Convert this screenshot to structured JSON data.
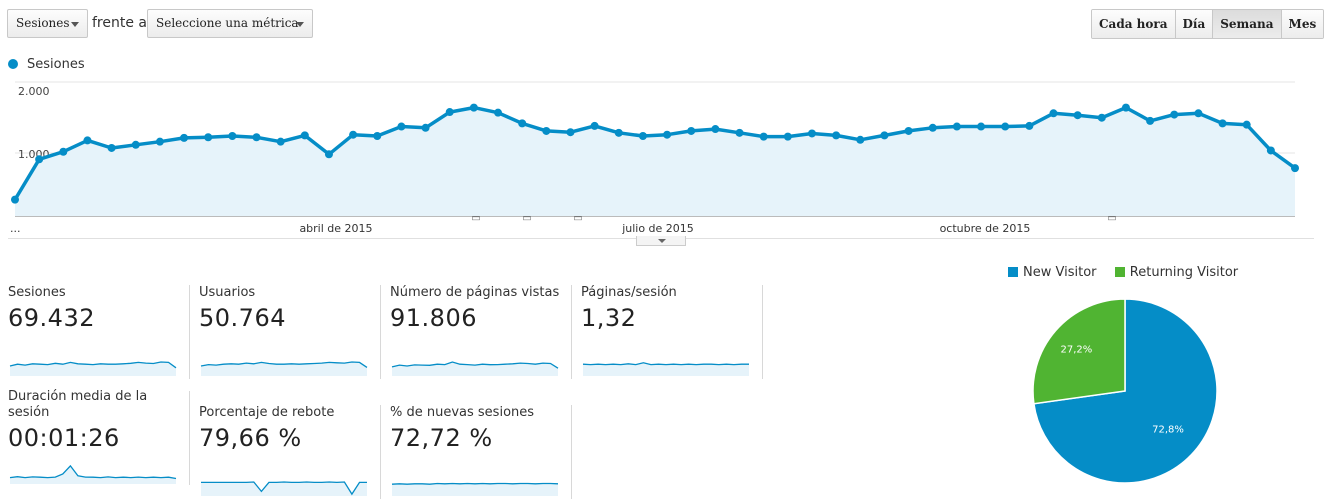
{
  "controls": {
    "primary_metric": "Sesiones",
    "versus": "frente a",
    "secondary_metric": "Seleccione una métrica",
    "granularity": [
      "Cada hora",
      "Día",
      "Semana",
      "Mes"
    ],
    "active_granularity": "Semana"
  },
  "chart_data": {
    "type": "area",
    "series_name": "Sesiones",
    "color": "#058dc7",
    "y_ticks": [
      "2.000",
      "1.000"
    ],
    "ylim": [
      0,
      2000
    ],
    "x_tick_labels": [
      "...",
      "abril de 2015",
      "julio de 2015",
      "octubre de 2015"
    ],
    "values": [
      260,
      900,
      1020,
      1200,
      1080,
      1130,
      1180,
      1240,
      1250,
      1270,
      1250,
      1180,
      1280,
      980,
      1290,
      1270,
      1420,
      1400,
      1650,
      1720,
      1640,
      1470,
      1350,
      1330,
      1430,
      1320,
      1270,
      1290,
      1350,
      1380,
      1320,
      1260,
      1260,
      1310,
      1280,
      1210,
      1280,
      1350,
      1400,
      1420,
      1420,
      1420,
      1430,
      1630,
      1600,
      1560,
      1720,
      1510,
      1610,
      1630,
      1470,
      1450,
      1040,
      760
    ],
    "annotation_markers": 4,
    "annotation_glyph": "▭"
  },
  "metrics": [
    {
      "label": "Sesiones",
      "value": "69.432",
      "spark": [
        0.5,
        0.6,
        0.55,
        0.62,
        0.6,
        0.58,
        0.65,
        0.6,
        0.7,
        0.62,
        0.6,
        0.58,
        0.62,
        0.6,
        0.6,
        0.62,
        0.65,
        0.7,
        0.66,
        0.64,
        0.72,
        0.7,
        0.4
      ]
    },
    {
      "label": "Usuarios",
      "value": "50.764",
      "spark": [
        0.5,
        0.58,
        0.55,
        0.6,
        0.62,
        0.6,
        0.66,
        0.62,
        0.7,
        0.64,
        0.6,
        0.6,
        0.62,
        0.6,
        0.62,
        0.64,
        0.66,
        0.7,
        0.68,
        0.66,
        0.72,
        0.7,
        0.42
      ]
    },
    {
      "label": "Número de páginas vistas",
      "value": "91.806",
      "spark": [
        0.45,
        0.55,
        0.5,
        0.56,
        0.55,
        0.54,
        0.6,
        0.58,
        0.72,
        0.6,
        0.58,
        0.55,
        0.6,
        0.57,
        0.58,
        0.6,
        0.62,
        0.66,
        0.64,
        0.6,
        0.66,
        0.64,
        0.38
      ]
    },
    {
      "label": "Páginas/sesión",
      "value": "1,32",
      "spark": [
        0.6,
        0.58,
        0.6,
        0.58,
        0.6,
        0.58,
        0.62,
        0.58,
        0.68,
        0.58,
        0.6,
        0.58,
        0.6,
        0.58,
        0.6,
        0.58,
        0.6,
        0.6,
        0.58,
        0.6,
        0.58,
        0.6,
        0.6
      ]
    },
    {
      "label": "Duración media de la sesión",
      "value": "00:01:26",
      "spark": [
        0.3,
        0.35,
        0.3,
        0.34,
        0.32,
        0.3,
        0.33,
        0.5,
        0.95,
        0.4,
        0.33,
        0.32,
        0.3,
        0.34,
        0.3,
        0.32,
        0.3,
        0.33,
        0.3,
        0.32,
        0.3,
        0.32,
        0.25
      ]
    },
    {
      "label": "Porcentaje de rebote",
      "value": "79,66 %",
      "spark": [
        0.7,
        0.7,
        0.7,
        0.7,
        0.7,
        0.7,
        0.7,
        0.72,
        0.2,
        0.7,
        0.7,
        0.72,
        0.7,
        0.7,
        0.72,
        0.7,
        0.7,
        0.72,
        0.7,
        0.72,
        0.05,
        0.7,
        0.7
      ]
    },
    {
      "label": "% de nuevas sesiones",
      "value": "72,72 %",
      "spark": [
        0.6,
        0.62,
        0.6,
        0.62,
        0.62,
        0.6,
        0.64,
        0.62,
        0.64,
        0.62,
        0.64,
        0.62,
        0.64,
        0.62,
        0.64,
        0.64,
        0.62,
        0.64,
        0.64,
        0.62,
        0.64,
        0.64,
        0.62
      ]
    }
  ],
  "pie": {
    "legend": [
      {
        "name": "New Visitor",
        "color": "#058dc7"
      },
      {
        "name": "Returning Visitor",
        "color": "#50b432"
      }
    ],
    "slices": [
      {
        "name": "New Visitor",
        "value": 72.8,
        "label": "72,8%",
        "color": "#058dc7"
      },
      {
        "name": "Returning Visitor",
        "value": 27.2,
        "label": "27,2%",
        "color": "#50b432"
      }
    ]
  }
}
